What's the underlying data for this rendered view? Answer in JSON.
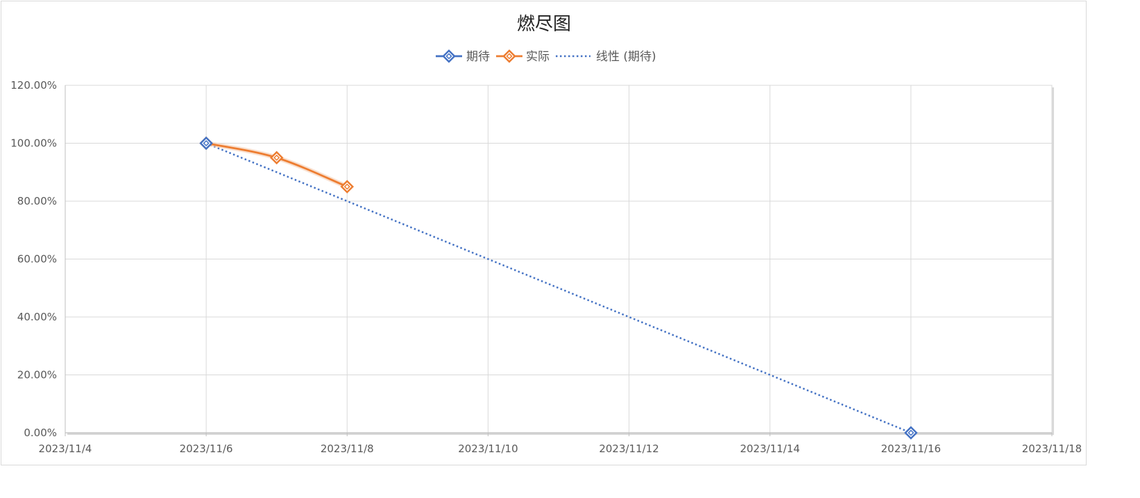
{
  "chart_data": {
    "type": "line",
    "title": "燃尽图",
    "x_axis": {
      "type": "date",
      "min": "2023-11-04",
      "max": "2023-11-18",
      "tick_labels": [
        "2023/11/4",
        "2023/11/6",
        "2023/11/8",
        "2023/11/10",
        "2023/11/12",
        "2023/11/14",
        "2023/11/16",
        "2023/11/18"
      ]
    },
    "y_axis": {
      "min": 0,
      "max": 1.2,
      "tick_labels": [
        "0.00%",
        "20.00%",
        "40.00%",
        "60.00%",
        "80.00%",
        "100.00%",
        "120.00%"
      ]
    },
    "grid": true,
    "legend_position": "top",
    "series": [
      {
        "name": "期待",
        "color": "#4472c4",
        "marker": "diamond",
        "line": "solid",
        "points": [
          {
            "x": "2023-11-06",
            "y": 1.0
          },
          {
            "x": "2023-11-16",
            "y": 0.0
          }
        ]
      },
      {
        "name": "实际",
        "color": "#ed7d31",
        "marker": "diamond",
        "line": "solid",
        "smooth": true,
        "points": [
          {
            "x": "2023-11-06",
            "y": 1.0
          },
          {
            "x": "2023-11-07",
            "y": 0.95
          },
          {
            "x": "2023-11-08",
            "y": 0.85
          }
        ]
      },
      {
        "name": "线性 (期待)",
        "color": "#4472c4",
        "marker": "none",
        "line": "dotted",
        "trendline_of": "期待",
        "points": [
          {
            "x": "2023-11-06",
            "y": 1.0
          },
          {
            "x": "2023-11-16",
            "y": 0.0
          }
        ]
      }
    ]
  }
}
